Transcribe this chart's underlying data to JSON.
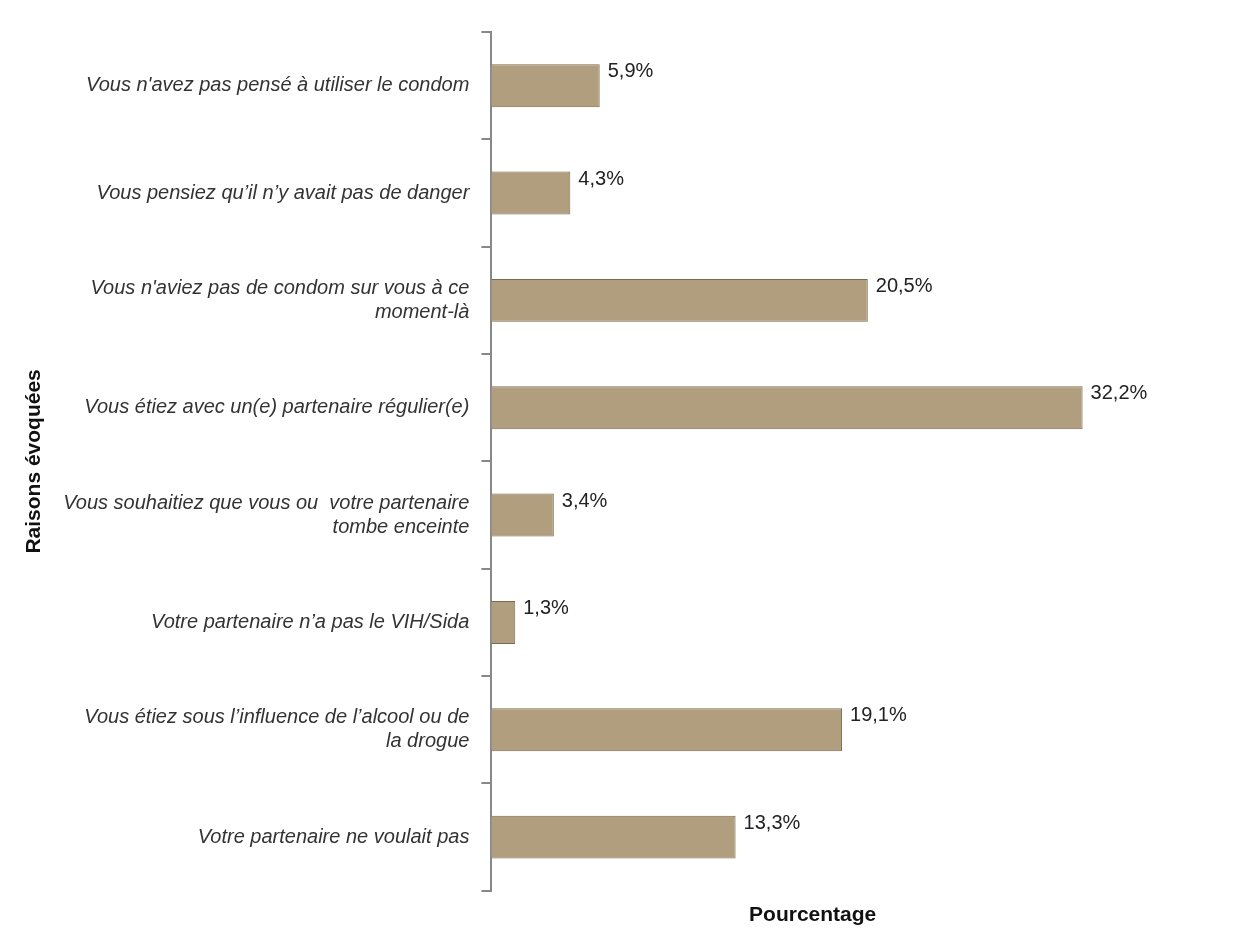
{
  "chart_data": {
    "type": "bar",
    "orientation": "horizontal",
    "xlabel": "Pourcentage",
    "ylabel": "Raisons évoquées",
    "categories": [
      "Vous n'avez pas pensé à utiliser le condom",
      "Vous pensiez qu’il n’y avait pas de danger",
      "Vous n'aviez pas de condom sur vous à ce moment-là",
      "Vous étiez avec un(e) partenaire régulier(e)",
      "Vous souhaitiez que vous ou  votre partenaire tombe enceinte",
      "Votre partenaire n’a pas le VIH/Sida",
      "Vous étiez sous l’influence de l’alcool ou de la drogue",
      "Votre partenaire ne voulait pas"
    ],
    "values": [
      5.9,
      4.3,
      20.5,
      32.2,
      3.4,
      1.3,
      19.1,
      13.3
    ],
    "value_labels": [
      "5,9%",
      "4,3%",
      "20,5%",
      "32,2%",
      "3,4%",
      "1,3%",
      "19,1%",
      "13,3%"
    ],
    "color": "#b09e7e",
    "grid": false,
    "legend": false
  }
}
